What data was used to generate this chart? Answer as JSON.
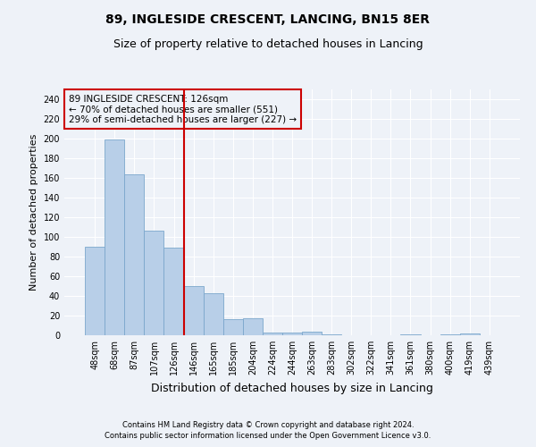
{
  "title": "89, INGLESIDE CRESCENT, LANCING, BN15 8ER",
  "subtitle": "Size of property relative to detached houses in Lancing",
  "xlabel": "Distribution of detached houses by size in Lancing",
  "ylabel": "Number of detached properties",
  "categories": [
    "48sqm",
    "68sqm",
    "87sqm",
    "107sqm",
    "126sqm",
    "146sqm",
    "165sqm",
    "185sqm",
    "204sqm",
    "224sqm",
    "244sqm",
    "263sqm",
    "283sqm",
    "302sqm",
    "322sqm",
    "341sqm",
    "361sqm",
    "380sqm",
    "400sqm",
    "419sqm",
    "439sqm"
  ],
  "values": [
    90,
    199,
    164,
    106,
    89,
    50,
    43,
    16,
    17,
    3,
    3,
    4,
    1,
    0,
    0,
    0,
    1,
    0,
    1,
    2,
    0
  ],
  "bar_color": "#b8cfe8",
  "bar_edge_color": "#7ba7cc",
  "reference_line_index": 4,
  "reference_line_color": "#cc0000",
  "ylim": [
    0,
    250
  ],
  "yticks": [
    0,
    20,
    40,
    60,
    80,
    100,
    120,
    140,
    160,
    180,
    200,
    220,
    240
  ],
  "annotation_line1": "89 INGLESIDE CRESCENT: 126sqm",
  "annotation_line2": "← 70% of detached houses are smaller (551)",
  "annotation_line3": "29% of semi-detached houses are larger (227) →",
  "annotation_box_edge_color": "#cc0000",
  "footer_line1": "Contains HM Land Registry data © Crown copyright and database right 2024.",
  "footer_line2": "Contains public sector information licensed under the Open Government Licence v3.0.",
  "background_color": "#eef2f8",
  "grid_color": "#ffffff",
  "title_fontsize": 10,
  "subtitle_fontsize": 9,
  "xlabel_fontsize": 9,
  "ylabel_fontsize": 8,
  "tick_fontsize": 7,
  "annotation_fontsize": 7.5,
  "footer_fontsize": 6
}
